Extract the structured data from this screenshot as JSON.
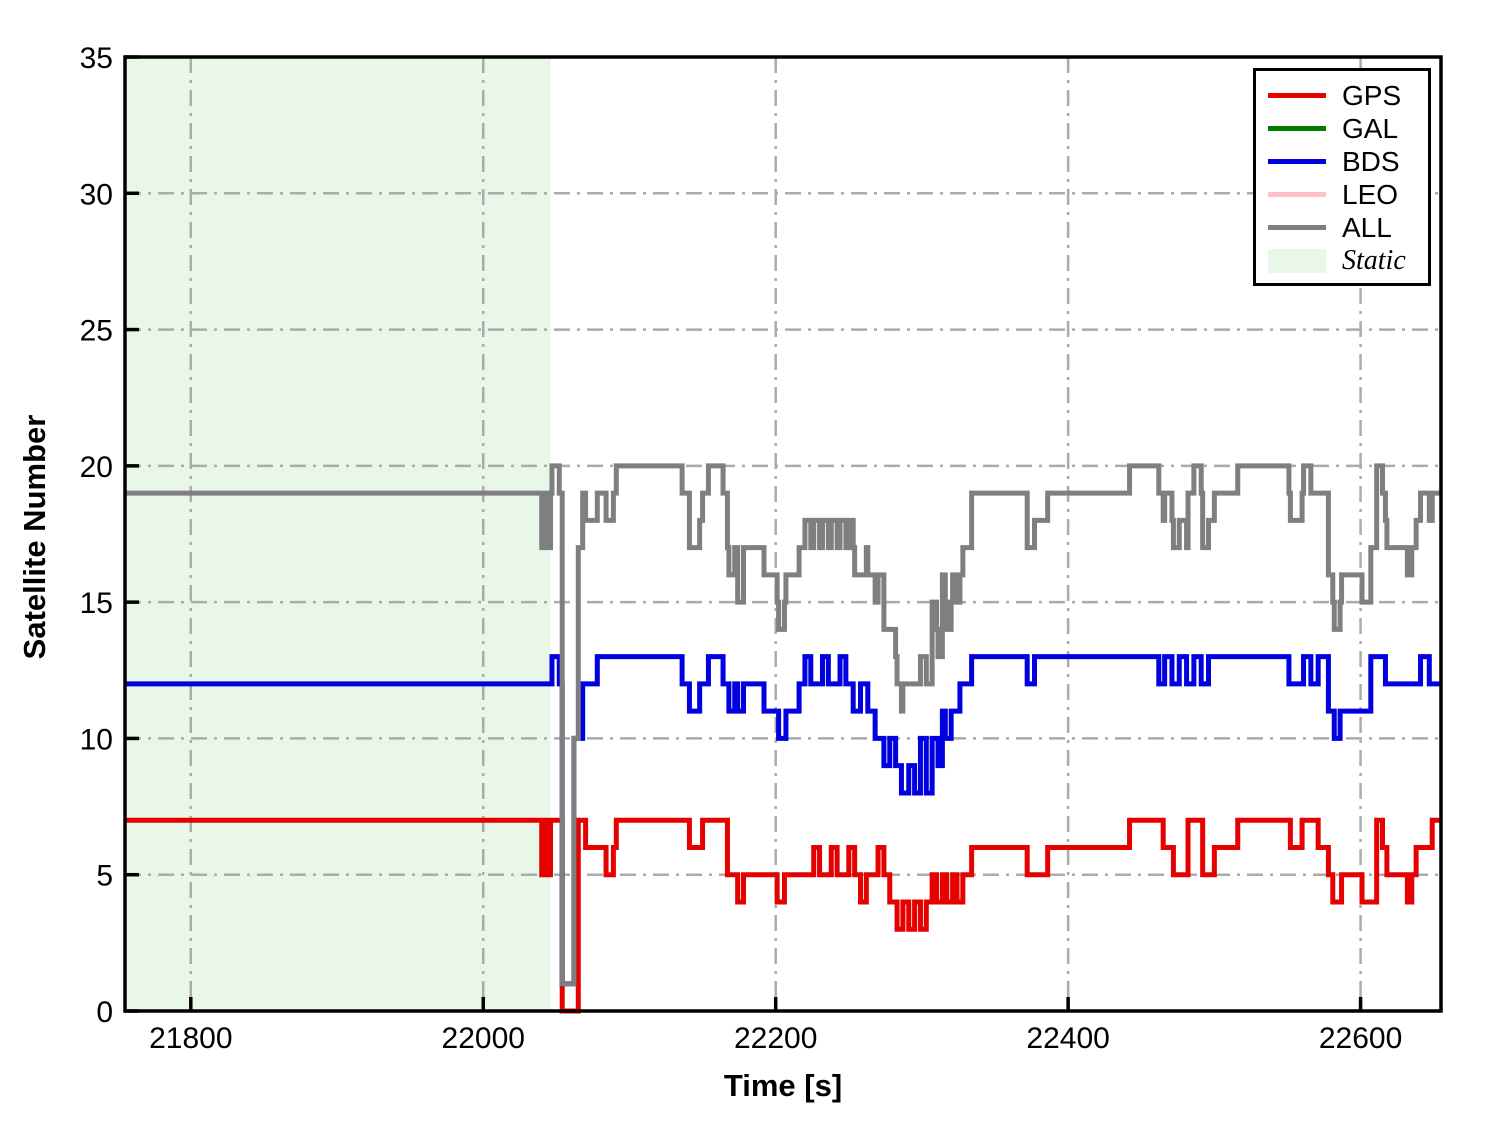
{
  "chart_data": {
    "type": "line",
    "title": "",
    "xlabel": "Time [s]",
    "ylabel": "Satellite Number",
    "xlim": [
      21755,
      22655
    ],
    "ylim": [
      0,
      35
    ],
    "x_ticks": [
      21800,
      22000,
      22200,
      22400,
      22600
    ],
    "y_ticks": [
      0,
      5,
      10,
      15,
      20,
      25,
      30,
      35
    ],
    "grid": {
      "style": "dash-dot",
      "color": "#ababab",
      "vertical": true,
      "horizontal": true
    },
    "legend_position": "upper-right",
    "interpolation": "step-post",
    "static_region": {
      "label": "Static",
      "t_start": 21755,
      "t_end": 22046,
      "fill": "#e9f7e9"
    },
    "series": [
      {
        "name": "GPS",
        "color": "#e60000",
        "breakpoints": [
          [
            21755,
            7
          ],
          [
            22040,
            5
          ],
          [
            22042,
            7
          ],
          [
            22044,
            5
          ],
          [
            22046,
            7
          ],
          [
            22054,
            0
          ],
          [
            22065,
            7
          ],
          [
            22070,
            6
          ],
          [
            22084,
            5
          ],
          [
            22089,
            6
          ],
          [
            22091,
            7
          ],
          [
            22141,
            6
          ],
          [
            22150,
            7
          ],
          [
            22167,
            5
          ],
          [
            22174,
            4
          ],
          [
            22178,
            5
          ],
          [
            22201,
            4
          ],
          [
            22206,
            5
          ],
          [
            22226,
            6
          ],
          [
            22230,
            5
          ],
          [
            22238,
            6
          ],
          [
            22242,
            5
          ],
          [
            22250,
            6
          ],
          [
            22254,
            5
          ],
          [
            22258,
            4
          ],
          [
            22262,
            5
          ],
          [
            22270,
            6
          ],
          [
            22274,
            5
          ],
          [
            22278,
            4
          ],
          [
            22283,
            3
          ],
          [
            22287,
            4
          ],
          [
            22291,
            3
          ],
          [
            22295,
            4
          ],
          [
            22299,
            3
          ],
          [
            22303,
            4
          ],
          [
            22307,
            5
          ],
          [
            22310,
            4
          ],
          [
            22314,
            5
          ],
          [
            22317,
            4
          ],
          [
            22321,
            5
          ],
          [
            22324,
            4
          ],
          [
            22328,
            5
          ],
          [
            22334,
            6
          ],
          [
            22372,
            5
          ],
          [
            22386,
            6
          ],
          [
            22442,
            7
          ],
          [
            22465,
            6
          ],
          [
            22472,
            5
          ],
          [
            22482,
            7
          ],
          [
            22492,
            5
          ],
          [
            22500,
            6
          ],
          [
            22516,
            7
          ],
          [
            22552,
            6
          ],
          [
            22560,
            7
          ],
          [
            22571,
            6
          ],
          [
            22578,
            5
          ],
          [
            22581,
            4
          ],
          [
            22587,
            5
          ],
          [
            22601,
            4
          ],
          [
            22611,
            7
          ],
          [
            22615,
            6
          ],
          [
            22618,
            5
          ],
          [
            22632,
            4
          ],
          [
            22635,
            5
          ],
          [
            22638,
            6
          ],
          [
            22649,
            7
          ]
        ]
      },
      {
        "name": "GAL",
        "color": "#007d00",
        "breakpoints": []
      },
      {
        "name": "BDS",
        "color": "#0000e0",
        "breakpoints": [
          [
            21755,
            12
          ],
          [
            22047,
            13
          ],
          [
            22052,
            12
          ],
          [
            22054,
            1
          ],
          [
            22062,
            10
          ],
          [
            22068,
            12
          ],
          [
            22078,
            13
          ],
          [
            22136,
            12
          ],
          [
            22141,
            11
          ],
          [
            22148,
            12
          ],
          [
            22154,
            13
          ],
          [
            22164,
            12
          ],
          [
            22168,
            11
          ],
          [
            22172,
            12
          ],
          [
            22174,
            11
          ],
          [
            22178,
            12
          ],
          [
            22192,
            11
          ],
          [
            22202,
            10
          ],
          [
            22207,
            11
          ],
          [
            22216,
            12
          ],
          [
            22220,
            13
          ],
          [
            22224,
            12
          ],
          [
            22232,
            13
          ],
          [
            22236,
            12
          ],
          [
            22244,
            13
          ],
          [
            22248,
            12
          ],
          [
            22253,
            11
          ],
          [
            22258,
            12
          ],
          [
            22263,
            11
          ],
          [
            22268,
            10
          ],
          [
            22274,
            9
          ],
          [
            22278,
            10
          ],
          [
            22282,
            9
          ],
          [
            22286,
            8
          ],
          [
            22291,
            9
          ],
          [
            22295,
            8
          ],
          [
            22299,
            10
          ],
          [
            22303,
            8
          ],
          [
            22307,
            10
          ],
          [
            22311,
            9
          ],
          [
            22314,
            11
          ],
          [
            22316,
            10
          ],
          [
            22320,
            11
          ],
          [
            22326,
            12
          ],
          [
            22334,
            13
          ],
          [
            22372,
            12
          ],
          [
            22377,
            13
          ],
          [
            22462,
            12
          ],
          [
            22466,
            13
          ],
          [
            22471,
            12
          ],
          [
            22476,
            13
          ],
          [
            22481,
            12
          ],
          [
            22486,
            13
          ],
          [
            22491,
            12
          ],
          [
            22496,
            13
          ],
          [
            22551,
            12
          ],
          [
            22561,
            13
          ],
          [
            22566,
            12
          ],
          [
            22571,
            13
          ],
          [
            22578,
            11
          ],
          [
            22582,
            10
          ],
          [
            22586,
            11
          ],
          [
            22607,
            13
          ],
          [
            22617,
            12
          ],
          [
            22641,
            13
          ],
          [
            22647,
            12
          ]
        ]
      },
      {
        "name": "LEO",
        "color": "#ffc0cb",
        "breakpoints": []
      },
      {
        "name": "ALL",
        "color": "#7f7f7f",
        "sum_of": [
          "GPS",
          "BDS"
        ]
      }
    ]
  },
  "legend": {
    "items": [
      {
        "label": "GPS",
        "kind": "line",
        "color": "#e60000"
      },
      {
        "label": "GAL",
        "kind": "line",
        "color": "#007d00"
      },
      {
        "label": "BDS",
        "kind": "line",
        "color": "#0000e0"
      },
      {
        "label": "LEO",
        "kind": "line",
        "color": "#ffc0cb"
      },
      {
        "label": "ALL",
        "kind": "line",
        "color": "#7f7f7f"
      },
      {
        "label": "Static",
        "kind": "patch",
        "color": "#e9f7e9"
      }
    ]
  }
}
